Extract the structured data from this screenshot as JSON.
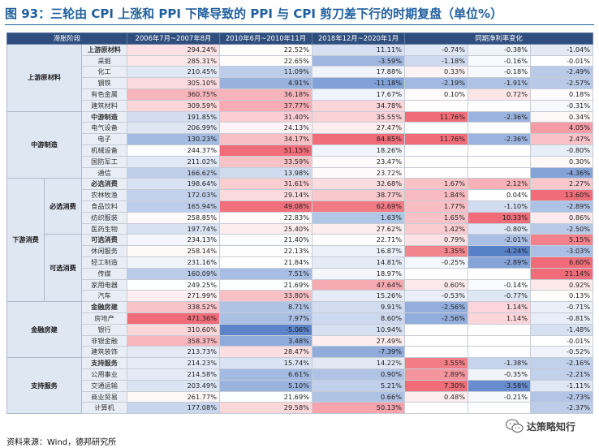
{
  "title": "图 93：三轮由 CPI 上涨和 PPI 下降导致的 PPI 与 CPI 剪刀差下行的时期复盘（单位%）",
  "footer": "资料来源：Wind，德邦研究所",
  "logo_text": "达策略知行",
  "table": {
    "headers": [
      "滞胀阶段",
      "2006年7月~2007年8月",
      "2010年6月~2010年11月",
      "2018年12月~2020年1月",
      "同期净利率变化"
    ],
    "sections": [
      {
        "name": "上游原材料",
        "groups": [
          {
            "name": "",
            "rows": [
              {
                "name": "上游原材料",
                "bold": true,
                "v": [
                  "294.24%",
                  "22.52%",
                  "11.11%",
                  "-0.74%",
                  "-0.38%",
                  "-1.04%"
                ]
              },
              {
                "name": "采掘",
                "v": [
                  "285.31%",
                  "22.65%",
                  "-3.59%",
                  "-1.18%",
                  "-0.16%",
                  "-0.01%"
                ]
              },
              {
                "name": "化工",
                "v": [
                  "210.45%",
                  "11.09%",
                  "17.88%",
                  "0.33%",
                  "-0.18%",
                  "-2.49%"
                ]
              },
              {
                "name": "钢铁",
                "v": [
                  "305.10%",
                  "4.91%",
                  "-11.18%",
                  "-2.19%",
                  "-1.91%",
                  "-2.57%"
                ]
              },
              {
                "name": "有色金属",
                "v": [
                  "360.75%",
                  "36.18%",
                  "17.67%",
                  "0.10%",
                  "0.72%",
                  "0.18%"
                ]
              },
              {
                "name": "建筑材料",
                "v": [
                  "309.59%",
                  "37.77%",
                  "34.78%",
                  "",
                  "",
                  "-0.31%"
                ]
              }
            ]
          }
        ]
      },
      {
        "name": "中游制造",
        "groups": [
          {
            "name": "",
            "rows": [
              {
                "name": "中游制造",
                "bold": true,
                "v": [
                  "191.85%",
                  "31.40%",
                  "35.55%",
                  "11.76%",
                  "-2.36%",
                  "0.34%"
                ]
              },
              {
                "name": "电气设备",
                "v": [
                  "206.99%",
                  "24.13%",
                  "27.47%",
                  "",
                  "",
                  "4.05%"
                ]
              },
              {
                "name": "电子",
                "v": [
                  "130.23%",
                  "34.17%",
                  "84.85%",
                  "11.76%",
                  "-2.36%",
                  "2.47%"
                ]
              },
              {
                "name": "机械设备",
                "v": [
                  "244.37%",
                  "51.15%",
                  "18.26%",
                  "",
                  "",
                  "-0.80%"
                ]
              },
              {
                "name": "国防军工",
                "v": [
                  "211.02%",
                  "33.59%",
                  "23.47%",
                  "",
                  "",
                  "0.30%"
                ]
              },
              {
                "name": "通信",
                "v": [
                  "166.62%",
                  "13.98%",
                  "23.72%",
                  "",
                  "",
                  "-4.36%"
                ]
              }
            ]
          }
        ]
      },
      {
        "name": "下游消费",
        "groups": [
          {
            "name": "必选消费",
            "rows": [
              {
                "name": "必选消费",
                "bold": true,
                "v": [
                  "198.64%",
                  "31.61%",
                  "32.68%",
                  "1.67%",
                  "2.12%",
                  "2.27%"
                ]
              },
              {
                "name": "农林牧渔",
                "v": [
                  "172.03%",
                  "29.14%",
                  "38.77%",
                  "1.84%",
                  "0.04%",
                  "13.60%"
                ]
              },
              {
                "name": "食品饮料",
                "v": [
                  "165.94%",
                  "49.08%",
                  "62.69%",
                  "1.77%",
                  "-1.10%",
                  "-2.89%"
                ]
              },
              {
                "name": "纺织服装",
                "v": [
                  "258.85%",
                  "22.83%",
                  "1.63%",
                  "1.65%",
                  "10.33%",
                  "0.86%"
                ]
              },
              {
                "name": "医药生物",
                "v": [
                  "197.74%",
                  "25.40%",
                  "27.62%",
                  "1.42%",
                  "-0.80%",
                  "-2.50%"
                ]
              }
            ]
          },
          {
            "name": "可选消费",
            "rows": [
              {
                "name": "可选消费",
                "bold": true,
                "v": [
                  "234.13%",
                  "21.40%",
                  "22.71%",
                  "0.79%",
                  "-2.01%",
                  "5.15%"
                ]
              },
              {
                "name": "休闲服务",
                "v": [
                  "258.14%",
                  "22.13%",
                  "16.87%",
                  "3.35%",
                  "-4.24%",
                  "-3.03%"
                ]
              },
              {
                "name": "轻工制造",
                "v": [
                  "231.16%",
                  "21.84%",
                  "14.81%",
                  "-0.25%",
                  "-2.89%",
                  "6.60%"
                ]
              },
              {
                "name": "传媒",
                "v": [
                  "160.09%",
                  "7.51%",
                  "18.97%",
                  "",
                  "",
                  "21.14%"
                ]
              },
              {
                "name": "家用电器",
                "v": [
                  "249.25%",
                  "21.69%",
                  "47.64%",
                  "0.60%",
                  "-0.14%",
                  "0.92%"
                ]
              },
              {
                "name": "汽车",
                "v": [
                  "271.99%",
                  "33.80%",
                  "15.26%",
                  "-0.53%",
                  "-0.77%",
                  "0.13%"
                ]
              }
            ]
          }
        ]
      },
      {
        "name": "金融房建",
        "groups": [
          {
            "name": "",
            "rows": [
              {
                "name": "金融房建",
                "bold": true,
                "v": [
                  "338.52%",
                  "8.71%",
                  "9.91%",
                  "-2.56%",
                  "1.14%",
                  "-0.71%"
                ]
              },
              {
                "name": "房地产",
                "v": [
                  "471.36%",
                  "7.97%",
                  "8.60%",
                  "-2.56%",
                  "1.14%",
                  "-0.81%"
                ]
              },
              {
                "name": "银行",
                "v": [
                  "310.60%",
                  "-5.06%",
                  "10.94%",
                  "",
                  "",
                  "-1.48%"
                ]
              },
              {
                "name": "非银金融",
                "v": [
                  "358.37%",
                  "3.48%",
                  "27.49%",
                  "",
                  "",
                  "-0.01%"
                ]
              },
              {
                "name": "建筑装饰",
                "v": [
                  "213.73%",
                  "28.47%",
                  "-7.39%",
                  "",
                  "",
                  "-0.52%"
                ]
              }
            ]
          }
        ]
      },
      {
        "name": "支持服务",
        "groups": [
          {
            "name": "",
            "rows": [
              {
                "name": "支持服务",
                "bold": true,
                "v": [
                  "214.23%",
                  "15.74%",
                  "14.22%",
                  "3.55%",
                  "-1.38%",
                  "-2.16%"
                ]
              },
              {
                "name": "公用事业",
                "v": [
                  "214.58%",
                  "6.61%",
                  "0.90%",
                  "2.89%",
                  "-0.35%",
                  "-2.21%"
                ]
              },
              {
                "name": "交通运输",
                "v": [
                  "203.49%",
                  "5.10%",
                  "5.21%",
                  "7.30%",
                  "-3.58%",
                  "-1.11%"
                ]
              },
              {
                "name": "商业贸易",
                "v": [
                  "261.77%",
                  "21.69%",
                  "0.66%",
                  "0.48%",
                  "-0.21%",
                  "-2.73%"
                ]
              },
              {
                "name": "计算机",
                "v": [
                  "177.08%",
                  "29.58%",
                  "50.13%",
                  "",
                  "",
                  "-2.37%"
                ]
              }
            ]
          }
        ]
      }
    ]
  },
  "colors": {
    "header_bg": "#2f4e7e",
    "positive_strong": "#f0707a",
    "negative_strong": "#5b82c8",
    "neutral": "#ffffff"
  }
}
